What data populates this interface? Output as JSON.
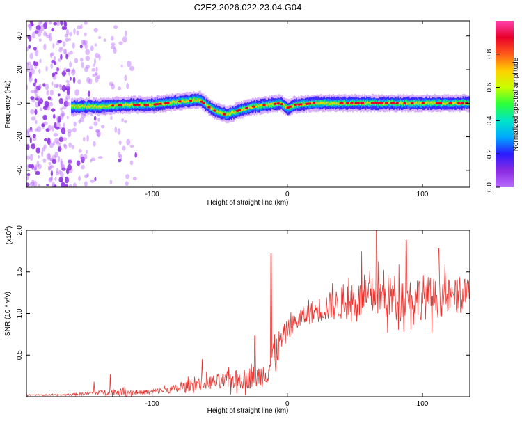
{
  "figure": {
    "title": "C2E2.2026.022.23.04.G04"
  },
  "colors": {
    "background": "#ffffff",
    "axes": "#000000",
    "snr_line": "#e8332e",
    "colormap": [
      "#ffffff",
      "#b76bff",
      "#8a2be2",
      "#2a1bff",
      "#00a8ff",
      "#00e5c8",
      "#2bff3a",
      "#c8ff00",
      "#ffd000",
      "#ff5a1a",
      "#e8002a",
      "#ff3fb0"
    ]
  },
  "chart_data": [
    {
      "id": "spectrogram",
      "type": "heatmap",
      "title": "",
      "xlabel": "Height of straight line (km)",
      "ylabel": "Frequency (Hz)",
      "xlim": [
        -193,
        135
      ],
      "ylim": [
        -50,
        49
      ],
      "xticks": [
        -100,
        0,
        100
      ],
      "yticks": [
        -40,
        -20,
        0,
        20,
        40
      ],
      "grid": false,
      "colorbar": {
        "label": "Normalized spectral amplitude",
        "range": [
          0.0,
          1.0
        ],
        "ticks": [
          0.0,
          0.2,
          0.4,
          0.6,
          0.8
        ]
      },
      "description_series": {
        "center_frequency_hz": {
          "x": [
            -160,
            -140,
            -120,
            -100,
            -80,
            -65,
            -55,
            -45,
            -35,
            -25,
            -15,
            -5,
            0,
            5,
            20,
            40,
            60,
            80,
            100,
            120,
            135
          ],
          "y": [
            -2,
            -2,
            -1,
            -1,
            1,
            2,
            -4,
            -7,
            -4,
            -2,
            -1,
            0,
            -3,
            -1,
            0,
            0,
            0,
            0,
            0,
            0,
            0
          ]
        },
        "noise_region_x": [
          -193,
          -112
        ]
      }
    },
    {
      "id": "snr",
      "type": "line",
      "title": "",
      "xlabel": "Height of straight line (km)",
      "ylabel": "SNR (10 * v/v)",
      "scale_note": "(x10",
      "scale_exponent": "4",
      "xlim": [
        -193,
        135
      ],
      "ylim": [
        0,
        2.0
      ],
      "xticks": [
        -100,
        0,
        100
      ],
      "yticks": [
        0.5,
        1.0,
        1.5,
        2.0
      ],
      "ytick_labels": [
        "0.5",
        "1.0",
        "1.5",
        "2.0"
      ],
      "grid": false,
      "series": [
        {
          "name": "",
          "color": "#e8332e",
          "envelope": {
            "x": [
              -193,
              -170,
              -155,
              -140,
              -130,
              -120,
              -110,
              -100,
              -90,
              -80,
              -70,
              -60,
              -50,
              -40,
              -30,
              -20,
              -15,
              -12,
              -10,
              -5,
              0,
              10,
              20,
              30,
              40,
              50,
              60,
              70,
              80,
              90,
              100,
              110,
              120,
              130,
              135
            ],
            "mid": [
              0.02,
              0.02,
              0.03,
              0.05,
              0.06,
              0.05,
              0.05,
              0.06,
              0.08,
              0.1,
              0.15,
              0.17,
              0.18,
              0.2,
              0.22,
              0.25,
              0.3,
              0.4,
              0.5,
              0.65,
              0.8,
              0.95,
              1.03,
              1.08,
              1.12,
              1.15,
              1.18,
              1.2,
              1.2,
              1.2,
              1.2,
              1.18,
              1.2,
              1.2,
              1.25
            ],
            "amp": [
              0.01,
              0.01,
              0.02,
              0.03,
              0.05,
              0.06,
              0.04,
              0.04,
              0.05,
              0.07,
              0.1,
              0.1,
              0.12,
              0.14,
              0.16,
              0.18,
              0.2,
              0.3,
              0.3,
              0.22,
              0.15,
              0.15,
              0.18,
              0.22,
              0.25,
              0.28,
              0.3,
              0.35,
              0.35,
              0.3,
              0.35,
              0.3,
              0.28,
              0.25,
              0.25
            ]
          },
          "peaks": [
            {
              "x": -131,
              "y": 0.27
            },
            {
              "x": -143,
              "y": 0.18
            },
            {
              "x": -63,
              "y": 0.45
            },
            {
              "x": -24,
              "y": 0.73
            },
            {
              "x": -12,
              "y": 1.72
            },
            {
              "x": 55,
              "y": 1.75
            },
            {
              "x": 66,
              "y": 2.0
            },
            {
              "x": 88,
              "y": 1.88
            },
            {
              "x": 112,
              "y": 1.78
            }
          ]
        }
      ]
    }
  ]
}
